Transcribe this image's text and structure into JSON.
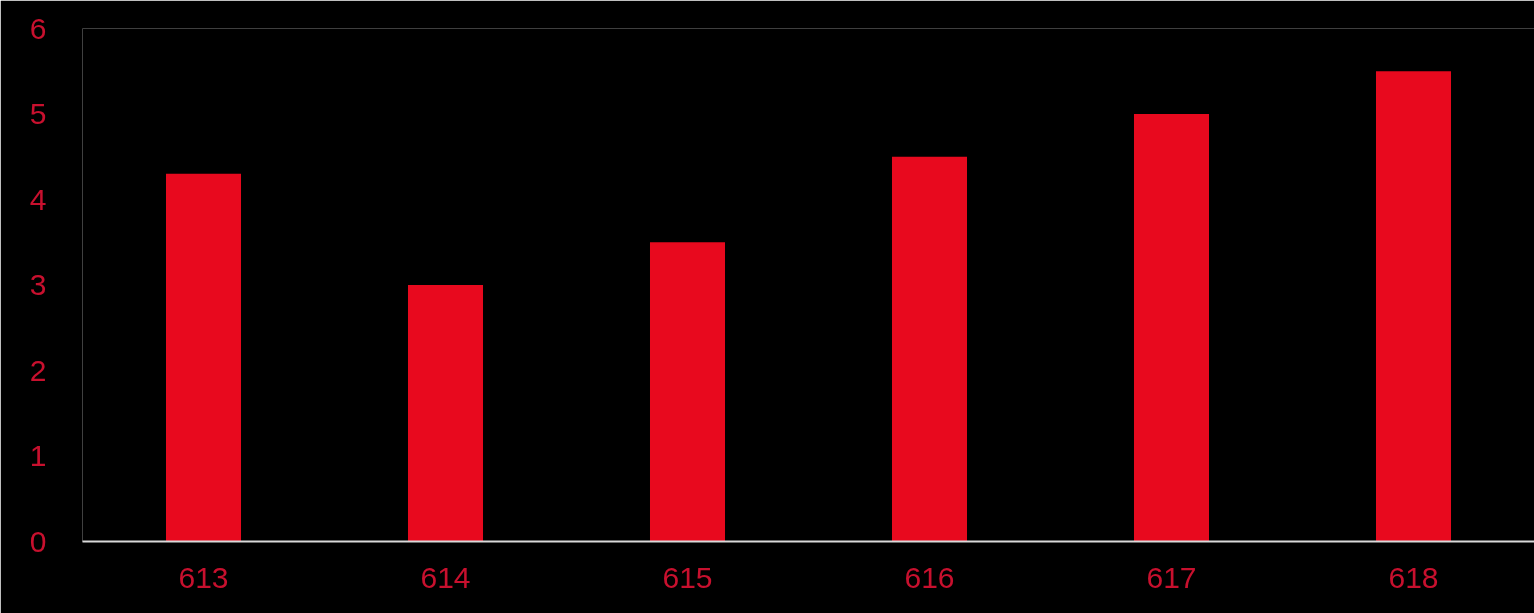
{
  "chart_data": {
    "type": "bar",
    "categories": [
      "613",
      "614",
      "615",
      "616",
      "617",
      "618"
    ],
    "values": [
      4.3,
      3.0,
      3.5,
      4.5,
      5.0,
      5.5
    ],
    "color": "#e8091e",
    "ylim": [
      0,
      6
    ],
    "yticks": [
      0,
      1,
      2,
      3,
      4,
      5,
      6
    ],
    "grid": false
  }
}
